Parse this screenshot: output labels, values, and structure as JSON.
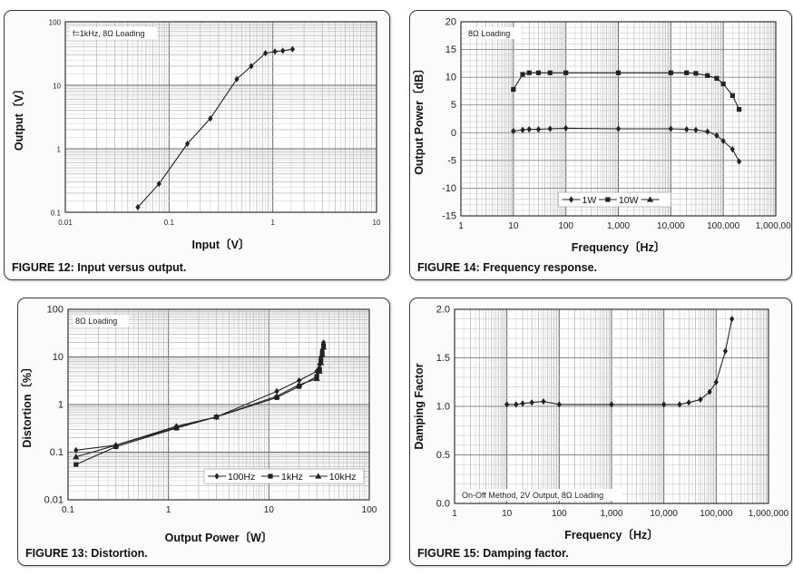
{
  "chart_data": [
    {
      "id": "fig12",
      "type": "line",
      "caption_figure": "FIGURE 12:",
      "caption_text": "Input versus output.",
      "annotation": "f=1kHz, 8Ω Loading",
      "xlabel": "Input〔V〕",
      "ylabel": "Output〔V〕",
      "xscale": "log",
      "yscale": "log",
      "xlim": [
        0.01,
        10
      ],
      "ylim": [
        0.1,
        100
      ],
      "xticks": [
        0.01,
        0.1,
        1,
        10
      ],
      "xtick_labels": [
        "0.01",
        "0.1",
        "1",
        "10"
      ],
      "yticks": [
        0.1,
        1,
        10,
        100
      ],
      "ytick_labels": [
        "0.1",
        "1",
        "10",
        "100"
      ],
      "grid": true,
      "series": [
        {
          "marker": "diamond",
          "x": [
            0.05,
            0.08,
            0.15,
            0.25,
            0.45,
            0.62,
            0.85,
            1.05,
            1.25,
            1.55
          ],
          "y": [
            0.12,
            0.28,
            1.2,
            3.0,
            12.5,
            20.0,
            32.0,
            34.0,
            35.0,
            37.0
          ]
        }
      ]
    },
    {
      "id": "fig14",
      "type": "line",
      "caption_figure": "FIGURE 14:",
      "caption_text": "Frequency response.",
      "annotation": "8Ω Loading",
      "xlabel": "Frequency〔Hz〕",
      "ylabel": "Output Power〔dB〕",
      "xscale": "log",
      "yscale": "linear",
      "xlim": [
        1,
        1000000
      ],
      "ylim": [
        -15,
        20
      ],
      "xticks": [
        1,
        10,
        100,
        1000,
        10000,
        100000,
        1000000
      ],
      "xtick_labels": [
        "1",
        "10",
        "100",
        "1,000",
        "10,000",
        "100,000",
        "1,000,000"
      ],
      "yticks": [
        -15,
        -10,
        -5,
        0,
        5,
        10,
        15,
        20
      ],
      "ytick_labels": [
        "-15",
        "-10",
        "-5",
        "0",
        "5",
        "10",
        "15",
        "20"
      ],
      "grid": true,
      "legend_position": "bottom-center",
      "series": [
        {
          "name": "1W",
          "marker": "diamond",
          "x": [
            10,
            15,
            20,
            30,
            50,
            100,
            1000,
            10000,
            20000,
            30000,
            50000,
            75000,
            100000,
            150000,
            200000
          ],
          "y": [
            0.3,
            0.5,
            0.6,
            0.6,
            0.7,
            0.8,
            0.7,
            0.7,
            0.6,
            0.5,
            0.2,
            -0.5,
            -1.5,
            -3.0,
            -5.2
          ]
        },
        {
          "name": "10W",
          "marker": "square",
          "x": [
            10,
            15,
            20,
            30,
            50,
            100,
            1000,
            10000,
            20000,
            30000,
            50000,
            75000,
            100000,
            150000,
            200000
          ],
          "y": [
            7.8,
            10.5,
            10.8,
            10.8,
            10.8,
            10.8,
            10.8,
            10.8,
            10.8,
            10.7,
            10.3,
            9.8,
            8.8,
            6.7,
            4.2
          ]
        },
        {
          "name": "",
          "marker": "triangle",
          "x": [],
          "y": []
        }
      ]
    },
    {
      "id": "fig13",
      "type": "line",
      "caption_figure": "FIGURE 13:",
      "caption_text": "Distortion.",
      "annotation": "8Ω Loading",
      "xlabel": "Output Power〔W〕",
      "ylabel": "Distortion〔%〕",
      "xscale": "log",
      "yscale": "log",
      "xlim": [
        0.1,
        100
      ],
      "ylim": [
        0.01,
        100
      ],
      "xticks": [
        0.1,
        1,
        10,
        100
      ],
      "xtick_labels": [
        "0.1",
        "1",
        "10",
        "100"
      ],
      "yticks": [
        0.01,
        0.1,
        1,
        10,
        100
      ],
      "ytick_labels": [
        "0.01",
        "0.1",
        "1",
        "10",
        "100"
      ],
      "grid": true,
      "legend_position": "bottom-right",
      "series": [
        {
          "name": "100Hz",
          "marker": "diamond",
          "x": [
            0.12,
            0.3,
            1.2,
            3,
            12,
            20,
            30,
            32,
            33,
            34,
            35
          ],
          "y": [
            0.11,
            0.14,
            0.35,
            0.55,
            1.9,
            3.2,
            5.0,
            7.0,
            10.0,
            14.0,
            20.0
          ]
        },
        {
          "name": "1kHz",
          "marker": "square",
          "x": [
            0.12,
            0.3,
            1.2,
            3,
            12,
            20,
            30,
            32,
            33,
            34,
            35
          ],
          "y": [
            0.055,
            0.13,
            0.32,
            0.55,
            1.4,
            2.4,
            3.9,
            5.5,
            8.5,
            12.0,
            17.0
          ]
        },
        {
          "name": "10kHz",
          "marker": "triangle",
          "x": [
            0.12,
            0.3,
            1.2,
            3,
            12,
            20,
            30,
            32,
            33,
            34,
            35
          ],
          "y": [
            0.08,
            0.14,
            0.33,
            0.55,
            1.5,
            2.6,
            3.5,
            5.0,
            7.5,
            11.0,
            16.0
          ]
        }
      ]
    },
    {
      "id": "fig15",
      "type": "line",
      "caption_figure": "FIGURE 15:",
      "caption_text": "Damping factor.",
      "annotation": "On-Off Method, 2V Output, 8Ω Loading",
      "xlabel": "Frequency〔Hz〕",
      "ylabel": "Damping Factor",
      "xscale": "log",
      "yscale": "linear",
      "xlim": [
        1,
        1000000
      ],
      "ylim": [
        0,
        2
      ],
      "xticks": [
        1,
        10,
        100,
        1000,
        10000,
        100000,
        1000000
      ],
      "xtick_labels": [
        "1",
        "10",
        "100",
        "1,000",
        "10,000",
        "100,000",
        "1,000,000"
      ],
      "yticks": [
        0,
        0.5,
        1,
        1.5,
        2
      ],
      "ytick_labels": [
        "0.0",
        "0.5",
        "1.0",
        "1.5",
        "2.0"
      ],
      "grid": true,
      "series": [
        {
          "marker": "diamond",
          "x": [
            10,
            15,
            20,
            30,
            50,
            100,
            1000,
            10000,
            20000,
            30000,
            50000,
            75000,
            100000,
            150000,
            200000
          ],
          "y": [
            1.02,
            1.02,
            1.03,
            1.04,
            1.05,
            1.02,
            1.02,
            1.02,
            1.02,
            1.04,
            1.07,
            1.15,
            1.25,
            1.57,
            1.9
          ]
        }
      ]
    }
  ]
}
